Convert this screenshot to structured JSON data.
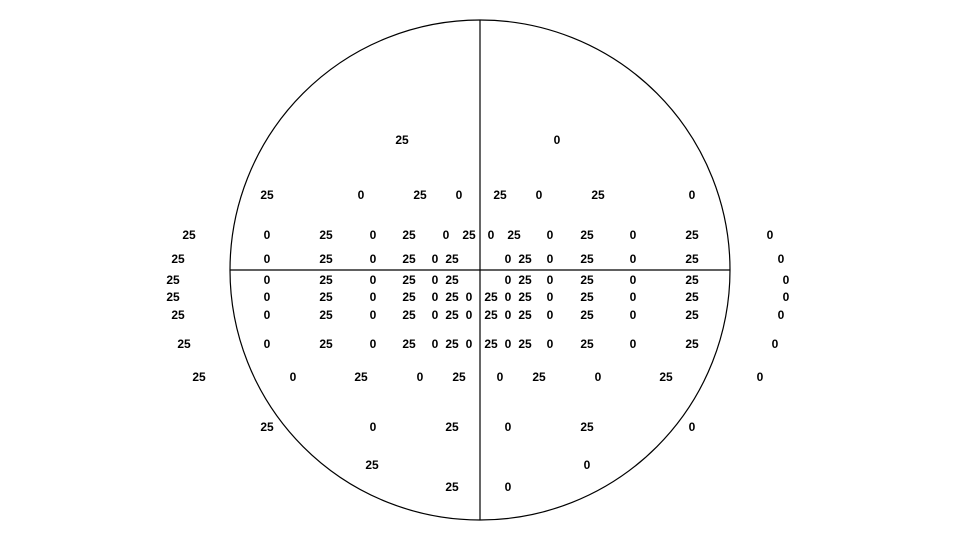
{
  "chart_data": {
    "type": "scatter",
    "description_source": "visual field plot with paired threshold values",
    "colors": {
      "ink": "#000000",
      "background": "#ffffff"
    },
    "rows": [
      {
        "y": 140,
        "points": [
          [
            402,
            "25"
          ],
          [
            557,
            "0"
          ]
        ]
      },
      {
        "y": 195,
        "points": [
          [
            267,
            "25"
          ],
          [
            361,
            "0"
          ],
          [
            420,
            "25"
          ],
          [
            459,
            "0"
          ],
          [
            500,
            "25"
          ],
          [
            539,
            "0"
          ],
          [
            598,
            "25"
          ],
          [
            692,
            "0"
          ]
        ]
      },
      {
        "y": 235,
        "points": [
          [
            189,
            "25"
          ],
          [
            267,
            "0"
          ],
          [
            326,
            "25"
          ],
          [
            373,
            "0"
          ],
          [
            409,
            "25"
          ],
          [
            446,
            "0"
          ],
          [
            469,
            "25"
          ],
          [
            491,
            "0"
          ],
          [
            514,
            "25"
          ],
          [
            550,
            "0"
          ],
          [
            587,
            "25"
          ],
          [
            633,
            "0"
          ],
          [
            692,
            "25"
          ],
          [
            770,
            "0"
          ]
        ]
      },
      {
        "y": 259,
        "points": [
          [
            178,
            "25"
          ],
          [
            267,
            "0"
          ],
          [
            326,
            "25"
          ],
          [
            373,
            "0"
          ],
          [
            409,
            "25"
          ],
          [
            435,
            "0"
          ],
          [
            452,
            "25"
          ],
          [
            508,
            "0"
          ],
          [
            525,
            "25"
          ],
          [
            550,
            "0"
          ],
          [
            587,
            "25"
          ],
          [
            633,
            "0"
          ],
          [
            692,
            "25"
          ],
          [
            781,
            "0"
          ]
        ]
      },
      {
        "y": 280,
        "points": [
          [
            173,
            "25"
          ],
          [
            267,
            "0"
          ],
          [
            326,
            "25"
          ],
          [
            373,
            "0"
          ],
          [
            409,
            "25"
          ],
          [
            435,
            "0"
          ],
          [
            452,
            "25"
          ],
          [
            508,
            "0"
          ],
          [
            525,
            "25"
          ],
          [
            550,
            "0"
          ],
          [
            587,
            "25"
          ],
          [
            633,
            "0"
          ],
          [
            692,
            "25"
          ],
          [
            786,
            "0"
          ]
        ]
      },
      {
        "y": 297,
        "points": [
          [
            173,
            "25"
          ],
          [
            267,
            "0"
          ],
          [
            326,
            "25"
          ],
          [
            373,
            "0"
          ],
          [
            409,
            "25"
          ],
          [
            435,
            "0"
          ],
          [
            452,
            "25"
          ],
          [
            469,
            "0"
          ],
          [
            491,
            "25"
          ],
          [
            508,
            "0"
          ],
          [
            525,
            "25"
          ],
          [
            550,
            "0"
          ],
          [
            587,
            "25"
          ],
          [
            633,
            "0"
          ],
          [
            692,
            "25"
          ],
          [
            786,
            "0"
          ]
        ]
      },
      {
        "y": 315,
        "points": [
          [
            178,
            "25"
          ],
          [
            267,
            "0"
          ],
          [
            326,
            "25"
          ],
          [
            373,
            "0"
          ],
          [
            409,
            "25"
          ],
          [
            435,
            "0"
          ],
          [
            452,
            "25"
          ],
          [
            469,
            "0"
          ],
          [
            491,
            "25"
          ],
          [
            508,
            "0"
          ],
          [
            525,
            "25"
          ],
          [
            550,
            "0"
          ],
          [
            587,
            "25"
          ],
          [
            633,
            "0"
          ],
          [
            692,
            "25"
          ],
          [
            781,
            "0"
          ]
        ]
      },
      {
        "y": 344,
        "points": [
          [
            184,
            "25"
          ],
          [
            267,
            "0"
          ],
          [
            326,
            "25"
          ],
          [
            373,
            "0"
          ],
          [
            409,
            "25"
          ],
          [
            435,
            "0"
          ],
          [
            452,
            "25"
          ],
          [
            469,
            "0"
          ],
          [
            491,
            "25"
          ],
          [
            508,
            "0"
          ],
          [
            525,
            "25"
          ],
          [
            550,
            "0"
          ],
          [
            587,
            "25"
          ],
          [
            633,
            "0"
          ],
          [
            692,
            "25"
          ],
          [
            775,
            "0"
          ]
        ]
      },
      {
        "y": 377,
        "points": [
          [
            199,
            "25"
          ],
          [
            293,
            "0"
          ],
          [
            361,
            "25"
          ],
          [
            420,
            "0"
          ],
          [
            459,
            "25"
          ],
          [
            500,
            "0"
          ],
          [
            539,
            "25"
          ],
          [
            598,
            "0"
          ],
          [
            666,
            "25"
          ],
          [
            760,
            "0"
          ]
        ]
      },
      {
        "y": 427,
        "points": [
          [
            267,
            "25"
          ],
          [
            373,
            "0"
          ],
          [
            452,
            "25"
          ],
          [
            508,
            "0"
          ],
          [
            587,
            "25"
          ],
          [
            692,
            "0"
          ]
        ]
      },
      {
        "y": 465,
        "points": [
          [
            372,
            "25"
          ],
          [
            587,
            "0"
          ]
        ]
      },
      {
        "y": 487,
        "points": [
          [
            452,
            "25"
          ],
          [
            508,
            "0"
          ]
        ]
      }
    ]
  }
}
